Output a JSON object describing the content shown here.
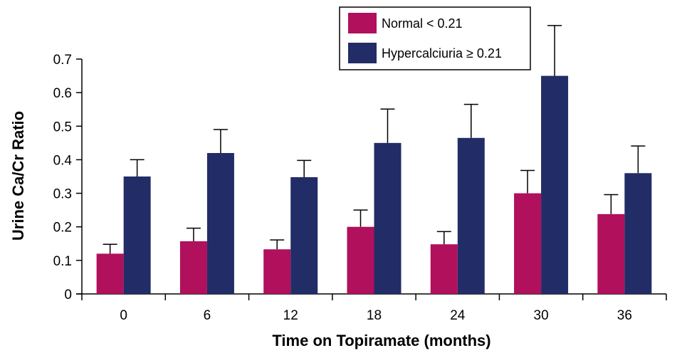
{
  "chart_data": {
    "type": "bar",
    "title": "",
    "xlabel": "Time on Topiramate (months)",
    "ylabel": "Urine Ca/Cr Ratio",
    "categories": [
      "0",
      "6",
      "12",
      "18",
      "24",
      "30",
      "36"
    ],
    "ylim": [
      0,
      0.7
    ],
    "yticks": [
      "0",
      "0.1",
      "0.2",
      "0.3",
      "0.4",
      "0.5",
      "0.6",
      "0.7"
    ],
    "series": [
      {
        "name": "Normal < 0.21",
        "color": "#b0105c",
        "values": [
          0.12,
          0.157,
          0.133,
          0.2,
          0.148,
          0.3,
          0.238
        ],
        "error_upper": [
          0.148,
          0.196,
          0.161,
          0.25,
          0.186,
          0.368,
          0.296
        ]
      },
      {
        "name": "Hypercalciuria ≥ 0.21",
        "color": "#222c66",
        "values": [
          0.35,
          0.42,
          0.348,
          0.45,
          0.465,
          0.65,
          0.36
        ],
        "error_upper": [
          0.4,
          0.49,
          0.398,
          0.551,
          0.565,
          0.8,
          0.441
        ]
      }
    ],
    "legend_position": "top-right",
    "grid": false
  }
}
